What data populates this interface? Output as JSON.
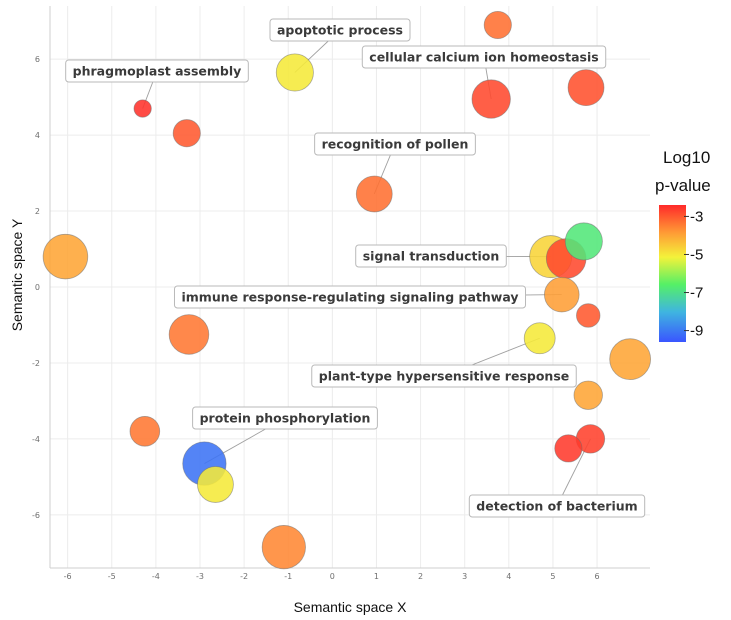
{
  "chart_data": {
    "type": "scatter",
    "title": "",
    "xlabel": "Semantic space X",
    "ylabel": "Semantic space Y",
    "xlim": [
      -6.4,
      7.2
    ],
    "ylim": [
      -7.4,
      7.4
    ],
    "x_ticks": [
      -6,
      -5,
      -4,
      -3,
      -2,
      -1,
      0,
      1,
      2,
      3,
      4,
      5,
      6
    ],
    "y_ticks": [
      -6,
      -4,
      -2,
      0,
      2,
      4,
      6
    ],
    "grid": true,
    "legend": {
      "title_line1": "Log10",
      "title_line2": "p-value",
      "placement": "right",
      "ticks": [
        -3,
        -5,
        -7,
        -9
      ],
      "range": [
        -9.6,
        -2.4
      ]
    },
    "points": [
      {
        "x": 3.75,
        "y": 6.9,
        "size": 2.2,
        "logp": -3.3
      },
      {
        "x": -0.85,
        "y": 5.65,
        "size": 3.0,
        "logp": -5.0
      },
      {
        "x": 3.6,
        "y": 4.95,
        "size": 3.1,
        "logp": -2.8
      },
      {
        "x": 5.75,
        "y": 5.25,
        "size": 2.9,
        "logp": -2.9
      },
      {
        "x": -4.3,
        "y": 4.7,
        "size": 1.4,
        "logp": -2.5
      },
      {
        "x": -3.3,
        "y": 4.05,
        "size": 2.2,
        "logp": -3.0
      },
      {
        "x": 0.95,
        "y": 2.45,
        "size": 2.9,
        "logp": -3.3
      },
      {
        "x": -6.05,
        "y": 0.8,
        "size": 3.6,
        "logp": -4.0
      },
      {
        "x": 4.95,
        "y": 0.8,
        "size": 3.4,
        "logp": -4.7
      },
      {
        "x": 5.3,
        "y": 0.75,
        "size": 3.2,
        "logp": -2.8
      },
      {
        "x": 5.7,
        "y": 1.2,
        "size": 3.0,
        "logp": -6.8
      },
      {
        "x": 5.2,
        "y": -0.2,
        "size": 2.8,
        "logp": -3.9
      },
      {
        "x": 5.8,
        "y": -0.75,
        "size": 1.9,
        "logp": -3.0
      },
      {
        "x": -3.25,
        "y": -1.25,
        "size": 3.2,
        "logp": -3.4
      },
      {
        "x": 4.7,
        "y": -1.35,
        "size": 2.5,
        "logp": -5.0
      },
      {
        "x": 6.75,
        "y": -1.9,
        "size": 3.3,
        "logp": -4.0
      },
      {
        "x": 5.8,
        "y": -2.85,
        "size": 2.3,
        "logp": -4.0
      },
      {
        "x": -4.25,
        "y": -3.8,
        "size": 2.4,
        "logp": -3.4
      },
      {
        "x": -2.9,
        "y": -4.65,
        "size": 3.5,
        "logp": -9.1
      },
      {
        "x": -2.65,
        "y": -5.2,
        "size": 2.9,
        "logp": -5.0
      },
      {
        "x": 5.85,
        "y": -4.0,
        "size": 2.3,
        "logp": -2.7
      },
      {
        "x": 5.35,
        "y": -4.25,
        "size": 2.2,
        "logp": -2.6
      },
      {
        "x": -1.1,
        "y": -6.85,
        "size": 3.5,
        "logp": -3.6
      }
    ],
    "labels": [
      {
        "text": "apoptotic process",
        "point": 1
      },
      {
        "text": "cellular calcium ion homeostasis",
        "point": 2
      },
      {
        "text": "phragmoplast assembly",
        "point": 4
      },
      {
        "text": "recognition of pollen",
        "point": 6
      },
      {
        "text": "signal transduction",
        "point": 8
      },
      {
        "text": "immune response-regulating signaling pathway",
        "point": 11
      },
      {
        "text": "plant-type hypersensitive response",
        "point": 14
      },
      {
        "text": "protein phosphorylation",
        "point": 18
      },
      {
        "text": "detection of bacterium",
        "point": 20
      }
    ]
  }
}
